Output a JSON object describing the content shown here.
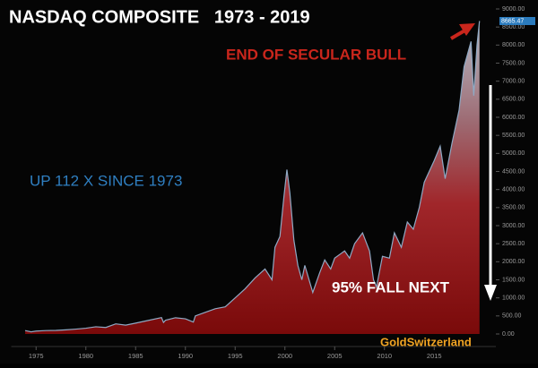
{
  "chart_data": {
    "type": "area",
    "title": "NASDAQ COMPOSITE   1973 - 2019",
    "annotations": [
      "END OF SECULAR BULL",
      "UP 112 X SINCE 1973",
      "95% FALL NEXT",
      "GoldSwitzerland"
    ],
    "color": "#8fa9c4",
    "x": [
      1973.9,
      1974.5,
      1975,
      1976,
      1977,
      1978,
      1979,
      1980,
      1981,
      1982,
      1983,
      1984,
      1985,
      1986,
      1987.6,
      1987.8,
      1988,
      1989,
      1990,
      1990.8,
      1991,
      1992,
      1993,
      1994,
      1995,
      1996,
      1997,
      1998,
      1998.7,
      1999,
      1999.5,
      1999.9,
      2000.2,
      2000.5,
      2000.9,
      2001.3,
      2001.7,
      2002,
      2002.8,
      2003.5,
      2004,
      2004.6,
      2005,
      2006,
      2006.5,
      2007,
      2007.8,
      2008.5,
      2008.9,
      2009.2,
      2009.8,
      2010.5,
      2011,
      2011.7,
      2012.3,
      2012.9,
      2013.5,
      2014,
      2015,
      2015.6,
      2016.1,
      2016.8,
      2017.5,
      2018,
      2018.7,
      2018.97,
      2019.3,
      2019.55
    ],
    "values": [
      95,
      60,
      80,
      95,
      100,
      115,
      135,
      160,
      200,
      180,
      280,
      245,
      300,
      360,
      455,
      320,
      380,
      450,
      420,
      330,
      500,
      600,
      700,
      750,
      1000,
      1250,
      1550,
      1800,
      1500,
      2400,
      2700,
      3800,
      4550,
      3900,
      2600,
      1900,
      1500,
      1900,
      1150,
      1700,
      2050,
      1800,
      2100,
      2300,
      2100,
      2500,
      2800,
      2300,
      1500,
      1300,
      2150,
      2100,
      2800,
      2400,
      3100,
      2900,
      3500,
      4200,
      4800,
      5200,
      4300,
      5300,
      6200,
      7400,
      8100,
      6600,
      8000,
      8665.47
    ],
    "xlim": [
      1972.5,
      2020.5
    ],
    "xticks": [
      1975,
      1980,
      1985,
      1990,
      1995,
      2000,
      2005,
      2010,
      2015
    ],
    "ylim": [
      0,
      9000
    ],
    "yticks": [
      {
        "value": 0,
        "label": "0.00"
      },
      {
        "value": 500,
        "label": "500.00"
      },
      {
        "value": 1000,
        "label": "1000.00"
      },
      {
        "value": 1500,
        "label": "1500.00"
      },
      {
        "value": 2000,
        "label": "2000.00"
      },
      {
        "value": 2500,
        "label": "2500.00"
      },
      {
        "value": 3000,
        "label": "3000.00"
      },
      {
        "value": 3500,
        "label": "3500.00"
      },
      {
        "value": 4000,
        "label": "4000.00"
      },
      {
        "value": 4500,
        "label": "4500.00"
      },
      {
        "value": 5000,
        "label": "5000.00"
      },
      {
        "value": 5500,
        "label": "5500.00"
      },
      {
        "value": 6000,
        "label": "6000.00"
      },
      {
        "value": 6500,
        "label": "6500.00"
      },
      {
        "value": 7000,
        "label": "7000.00"
      },
      {
        "value": 7500,
        "label": "7500.00"
      },
      {
        "value": 8000,
        "label": "8000.00"
      },
      {
        "value": 8500,
        "label": "8500.00"
      },
      {
        "value": 9000,
        "label": "9000.00"
      }
    ],
    "grid": false
  }
}
